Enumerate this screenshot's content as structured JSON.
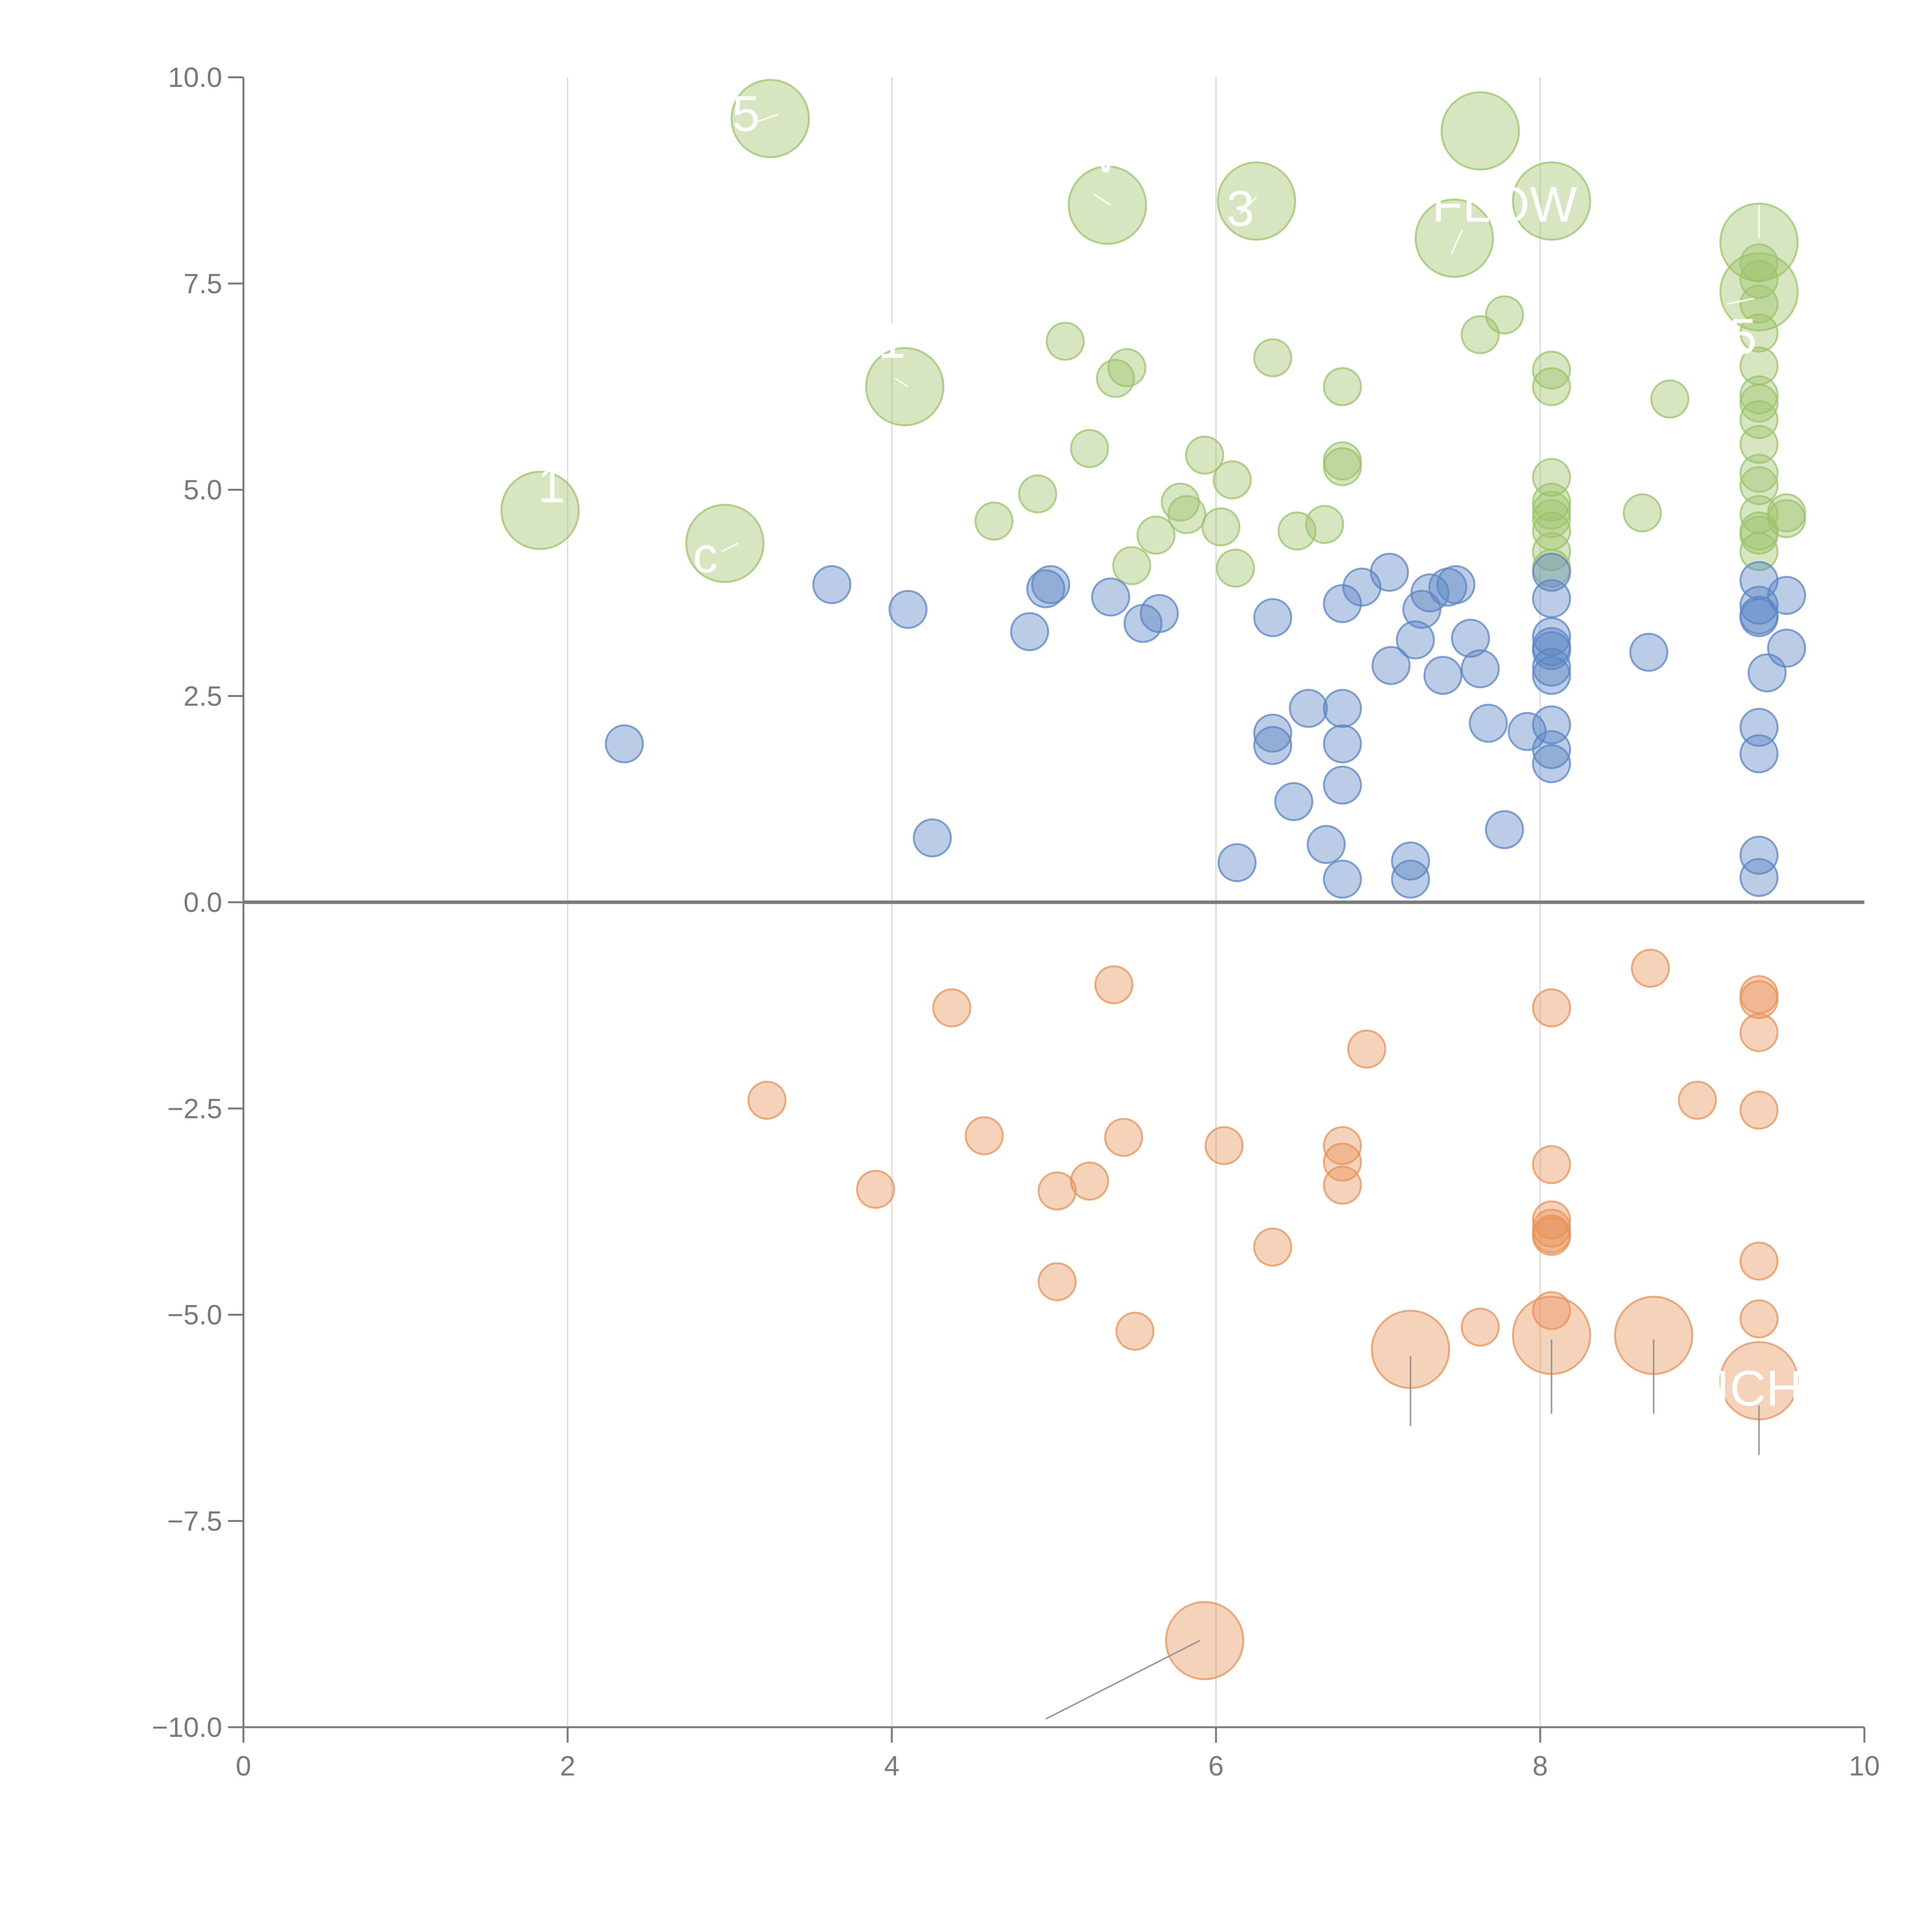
{
  "chart_data": {
    "type": "scatter",
    "subtype": "bubble",
    "title": "",
    "xlabel": "",
    "ylabel": "",
    "xlim": [
      0,
      10
    ],
    "ylim": [
      -10,
      10
    ],
    "x_ticks": [
      "0",
      "2",
      "4",
      "6",
      "8",
      "10"
    ],
    "y_ticks": [
      "−10.0",
      "−7.5",
      "−5.0",
      "−2.5",
      "0.0",
      "2.5",
      "5.0",
      "7.5",
      "10.0"
    ],
    "grid": "vertical",
    "colors": {
      "green": "#9dc36b",
      "blue": "#5b86c4",
      "orange": "#e8935a",
      "axis": "#7a7a7a",
      "grid": "#d6d6d6"
    },
    "series": [
      {
        "name": "green",
        "points": [
          [
            3.25,
            9.5,
            1.0
          ],
          [
            7.63,
            9.35,
            1.0
          ],
          [
            5.33,
            8.45,
            1.0
          ],
          [
            6.25,
            8.5,
            1.0
          ],
          [
            8.07,
            8.5,
            1.0
          ],
          [
            7.47,
            8.05,
            1.0
          ],
          [
            9.35,
            8.0,
            1.0
          ],
          [
            9.35,
            7.4,
            1.0
          ],
          [
            4.08,
            6.25,
            1.0
          ],
          [
            1.83,
            4.75,
            1.0
          ],
          [
            2.97,
            4.35,
            1.0
          ],
          [
            7.78,
            7.12,
            0.5
          ],
          [
            7.63,
            6.88,
            0.5
          ],
          [
            9.35,
            7.75,
            0.5
          ],
          [
            9.35,
            7.55,
            0.5
          ],
          [
            9.35,
            7.25,
            0.5
          ],
          [
            9.35,
            6.9,
            0.5
          ],
          [
            9.35,
            6.5,
            0.5
          ],
          [
            9.35,
            6.15,
            0.5
          ],
          [
            9.35,
            6.05,
            0.5
          ],
          [
            9.35,
            5.85,
            0.5
          ],
          [
            9.35,
            5.55,
            0.5
          ],
          [
            9.35,
            5.2,
            0.5
          ],
          [
            9.35,
            5.05,
            0.5
          ],
          [
            9.35,
            4.7,
            0.5
          ],
          [
            9.35,
            4.5,
            0.5
          ],
          [
            9.35,
            4.45,
            0.5
          ],
          [
            9.35,
            4.25,
            0.5
          ],
          [
            9.52,
            4.72,
            0.5
          ],
          [
            9.52,
            4.65,
            0.5
          ],
          [
            8.8,
            6.1,
            0.5
          ],
          [
            8.63,
            4.72,
            0.5
          ],
          [
            8.07,
            6.45,
            0.5
          ],
          [
            8.07,
            6.25,
            0.5
          ],
          [
            8.07,
            5.15,
            0.5
          ],
          [
            8.07,
            4.85,
            0.5
          ],
          [
            8.07,
            4.75,
            0.5
          ],
          [
            8.07,
            4.65,
            0.5
          ],
          [
            8.07,
            4.5,
            0.5
          ],
          [
            8.07,
            4.25,
            0.5
          ],
          [
            8.07,
            4.05,
            0.5
          ],
          [
            6.35,
            6.6,
            0.5
          ],
          [
            6.78,
            6.25,
            0.5
          ],
          [
            6.78,
            5.35,
            0.5
          ],
          [
            6.78,
            5.28,
            0.5
          ],
          [
            6.1,
            5.12,
            0.5
          ],
          [
            5.07,
            6.8,
            0.5
          ],
          [
            5.45,
            6.48,
            0.5
          ],
          [
            5.38,
            6.35,
            0.5
          ],
          [
            5.22,
            5.5,
            0.5
          ],
          [
            5.93,
            5.42,
            0.5
          ],
          [
            4.9,
            4.95,
            0.5
          ],
          [
            4.63,
            4.62,
            0.5
          ],
          [
            5.78,
            4.85,
            0.5
          ],
          [
            5.82,
            4.7,
            0.5
          ],
          [
            6.03,
            4.55,
            0.5
          ],
          [
            6.5,
            4.5,
            0.5
          ],
          [
            6.67,
            4.58,
            0.5
          ],
          [
            5.63,
            4.45,
            0.5
          ],
          [
            5.48,
            4.08,
            0.5
          ],
          [
            6.12,
            4.05,
            0.5
          ]
        ]
      },
      {
        "name": "blue",
        "points": [
          [
            2.35,
            1.92,
            0.5
          ],
          [
            3.63,
            3.85,
            0.5
          ],
          [
            4.1,
            3.55,
            0.5
          ],
          [
            4.25,
            0.78,
            0.5
          ],
          [
            4.85,
            3.28,
            0.5
          ],
          [
            4.95,
            3.8,
            0.5
          ],
          [
            4.98,
            3.85,
            0.5
          ],
          [
            5.35,
            3.7,
            0.5
          ],
          [
            5.55,
            3.38,
            0.5
          ],
          [
            5.65,
            3.5,
            0.5
          ],
          [
            6.13,
            0.48,
            0.5
          ],
          [
            6.35,
            3.45,
            0.5
          ],
          [
            6.35,
            2.05,
            0.5
          ],
          [
            6.35,
            1.9,
            0.5
          ],
          [
            6.48,
            1.22,
            0.5
          ],
          [
            6.57,
            2.35,
            0.5
          ],
          [
            6.68,
            0.7,
            0.5
          ],
          [
            6.78,
            3.62,
            0.5
          ],
          [
            6.9,
            3.82,
            0.5
          ],
          [
            6.78,
            2.35,
            0.5
          ],
          [
            6.78,
            1.92,
            0.5
          ],
          [
            6.78,
            1.42,
            0.5
          ],
          [
            6.78,
            0.28,
            0.5
          ],
          [
            7.07,
            4.0,
            0.5
          ],
          [
            7.08,
            2.87,
            0.5
          ],
          [
            7.23,
            3.18,
            0.5
          ],
          [
            7.27,
            3.55,
            0.5
          ],
          [
            7.32,
            3.75,
            0.5
          ],
          [
            7.43,
            3.82,
            0.5
          ],
          [
            7.48,
            3.85,
            0.5
          ],
          [
            7.4,
            2.75,
            0.5
          ],
          [
            7.57,
            3.2,
            0.5
          ],
          [
            7.63,
            2.83,
            0.5
          ],
          [
            7.68,
            2.17,
            0.5
          ],
          [
            7.2,
            0.5,
            0.5
          ],
          [
            7.2,
            0.28,
            0.5
          ],
          [
            7.78,
            0.88,
            0.5
          ],
          [
            7.92,
            2.07,
            0.5
          ],
          [
            8.07,
            4.0,
            0.5
          ],
          [
            8.07,
            3.68,
            0.5
          ],
          [
            8.07,
            3.22,
            0.5
          ],
          [
            8.07,
            3.1,
            0.5
          ],
          [
            8.07,
            3.05,
            0.5
          ],
          [
            8.07,
            2.85,
            0.5
          ],
          [
            8.07,
            2.75,
            0.5
          ],
          [
            8.07,
            2.15,
            0.5
          ],
          [
            8.07,
            1.85,
            0.5
          ],
          [
            8.07,
            1.68,
            0.5
          ],
          [
            8.67,
            3.03,
            0.5
          ],
          [
            9.35,
            3.9,
            0.5
          ],
          [
            9.35,
            3.6,
            0.5
          ],
          [
            9.35,
            3.48,
            0.5
          ],
          [
            9.35,
            3.45,
            0.5
          ],
          [
            9.52,
            3.72,
            0.5
          ],
          [
            9.52,
            3.08,
            0.5
          ],
          [
            9.4,
            2.78,
            0.5
          ],
          [
            9.35,
            2.12,
            0.5
          ],
          [
            9.35,
            1.8,
            0.5
          ],
          [
            9.35,
            0.57,
            0.5
          ],
          [
            9.35,
            0.3,
            0.5
          ]
        ]
      },
      {
        "name": "orange",
        "points": [
          [
            3.23,
            -2.4,
            0.5
          ],
          [
            3.9,
            -3.48,
            0.5
          ],
          [
            4.37,
            -1.28,
            0.5
          ],
          [
            4.57,
            -2.83,
            0.5
          ],
          [
            5.02,
            -3.5,
            0.5
          ],
          [
            5.02,
            -4.6,
            0.5
          ],
          [
            5.22,
            -3.38,
            0.5
          ],
          [
            5.37,
            -1.0,
            0.5
          ],
          [
            5.43,
            -2.85,
            0.5
          ],
          [
            5.5,
            -5.2,
            0.5
          ],
          [
            6.05,
            -2.95,
            0.5
          ],
          [
            6.35,
            -4.18,
            0.5
          ],
          [
            6.78,
            -2.95,
            0.5
          ],
          [
            6.78,
            -3.15,
            0.5
          ],
          [
            6.78,
            -3.43,
            0.5
          ],
          [
            6.93,
            -1.78,
            0.5
          ],
          [
            7.63,
            -5.15,
            0.5
          ],
          [
            8.07,
            -1.28,
            0.5
          ],
          [
            8.07,
            -3.18,
            0.5
          ],
          [
            8.07,
            -3.85,
            0.5
          ],
          [
            8.07,
            -3.95,
            0.5
          ],
          [
            8.07,
            -4.02,
            0.5
          ],
          [
            8.07,
            -4.05,
            0.5
          ],
          [
            8.07,
            -4.95,
            0.5
          ],
          [
            8.68,
            -0.8,
            0.5
          ],
          [
            8.97,
            -2.4,
            0.5
          ],
          [
            9.35,
            -1.12,
            0.5
          ],
          [
            9.35,
            -1.18,
            0.5
          ],
          [
            9.35,
            -1.58,
            0.5
          ],
          [
            9.35,
            -2.52,
            0.5
          ],
          [
            9.35,
            -4.35,
            0.5
          ],
          [
            9.35,
            -5.05,
            0.5
          ],
          [
            7.2,
            -5.42,
            1.0
          ],
          [
            8.07,
            -5.25,
            1.0
          ],
          [
            8.7,
            -5.25,
            1.0
          ],
          [
            9.35,
            -5.8,
            1.0
          ],
          [
            5.93,
            -8.95,
            1.0
          ]
        ]
      }
    ],
    "labels": [
      {
        "text": "5",
        "x": 3.1,
        "y": 9.35
      },
      {
        "text": "v",
        "x": 5.32,
        "y": 8.85
      },
      {
        "text": "3",
        "x": 6.15,
        "y": 8.2
      },
      {
        "text": "FLOW",
        "x": 7.78,
        "y": 8.25
      },
      {
        "text": "5",
        "x": 9.25,
        "y": 6.65
      },
      {
        "text": "1",
        "x": 4.0,
        "y": 6.6
      },
      {
        "text": "1",
        "x": 1.9,
        "y": 4.85
      },
      {
        "text": "c",
        "x": 2.85,
        "y": 4.0
      },
      {
        "text": "ICH",
        "x": 9.35,
        "y": -6.1
      }
    ],
    "leaders": [
      [
        3.15,
        9.45,
        3.3,
        9.55
      ],
      [
        5.35,
        8.45,
        5.25,
        8.58
      ],
      [
        6.15,
        8.35,
        6.25,
        8.55
      ],
      [
        7.52,
        8.15,
        7.45,
        7.85
      ],
      [
        9.35,
        8.05,
        9.35,
        8.45
      ],
      [
        9.15,
        7.25,
        9.32,
        7.32
      ],
      [
        4.05,
        6.98,
        4.05,
        7.0
      ],
      [
        4.1,
        6.25,
        4.02,
        6.35
      ],
      [
        1.85,
        4.8,
        1.85,
        4.8
      ],
      [
        3.05,
        4.35,
        2.95,
        4.25
      ],
      [
        7.2,
        -5.5,
        7.2,
        -6.35
      ],
      [
        8.07,
        -5.3,
        8.07,
        -6.2
      ],
      [
        8.7,
        -5.3,
        8.7,
        -6.2
      ],
      [
        9.35,
        -6.1,
        9.35,
        -6.7
      ],
      [
        5.9,
        -8.95,
        4.95,
        -9.9
      ]
    ]
  }
}
